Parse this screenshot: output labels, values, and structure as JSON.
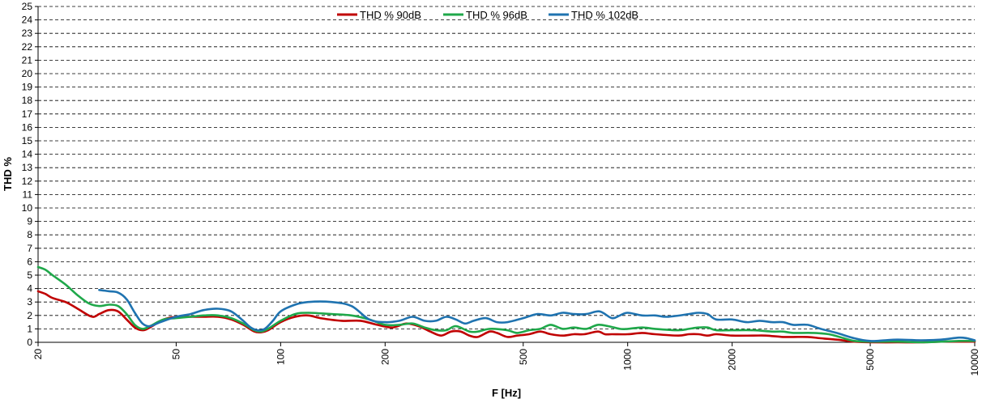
{
  "chart_data": {
    "type": "line",
    "xscale": "log",
    "xlim": [
      20,
      10000
    ],
    "ylim": [
      0,
      25
    ],
    "xlabel": "F [Hz]",
    "ylabel": "THD %",
    "x_ticks": [
      "20",
      "50",
      "100",
      "200",
      "500",
      "1000",
      "2000",
      "5000",
      "10000"
    ],
    "y_ticks": [
      "0",
      "1",
      "2",
      "3",
      "4",
      "5",
      "6",
      "7",
      "8",
      "9",
      "10",
      "11",
      "12",
      "13",
      "14",
      "15",
      "16",
      "17",
      "18",
      "19",
      "20",
      "21",
      "22",
      "23",
      "24",
      "25"
    ],
    "grid": "horizontal dashed",
    "legend": "top-center",
    "series": [
      {
        "name": "THD % 90dB",
        "color": "#c00000",
        "points": [
          [
            20,
            3.8
          ],
          [
            21,
            3.6
          ],
          [
            22,
            3.3
          ],
          [
            24,
            3.0
          ],
          [
            26,
            2.5
          ],
          [
            28,
            2.0
          ],
          [
            29,
            1.9
          ],
          [
            30,
            2.1
          ],
          [
            32,
            2.4
          ],
          [
            34,
            2.3
          ],
          [
            36,
            1.7
          ],
          [
            38,
            1.1
          ],
          [
            40,
            0.9
          ],
          [
            42,
            1.1
          ],
          [
            46,
            1.7
          ],
          [
            50,
            1.9
          ],
          [
            55,
            1.9
          ],
          [
            60,
            1.9
          ],
          [
            66,
            1.9
          ],
          [
            72,
            1.7
          ],
          [
            78,
            1.3
          ],
          [
            84,
            0.8
          ],
          [
            88,
            0.75
          ],
          [
            92,
            0.9
          ],
          [
            100,
            1.5
          ],
          [
            110,
            1.9
          ],
          [
            120,
            2.0
          ],
          [
            130,
            1.8
          ],
          [
            150,
            1.6
          ],
          [
            170,
            1.6
          ],
          [
            190,
            1.3
          ],
          [
            210,
            1.1
          ],
          [
            230,
            1.4
          ],
          [
            250,
            1.2
          ],
          [
            270,
            0.8
          ],
          [
            290,
            0.5
          ],
          [
            310,
            0.8
          ],
          [
            330,
            0.8
          ],
          [
            350,
            0.5
          ],
          [
            370,
            0.4
          ],
          [
            400,
            0.8
          ],
          [
            420,
            0.7
          ],
          [
            450,
            0.4
          ],
          [
            480,
            0.5
          ],
          [
            520,
            0.6
          ],
          [
            560,
            0.8
          ],
          [
            600,
            0.6
          ],
          [
            650,
            0.5
          ],
          [
            700,
            0.6
          ],
          [
            750,
            0.6
          ],
          [
            820,
            0.8
          ],
          [
            860,
            0.6
          ],
          [
            900,
            0.6
          ],
          [
            1000,
            0.6
          ],
          [
            1100,
            0.7
          ],
          [
            1200,
            0.6
          ],
          [
            1400,
            0.5
          ],
          [
            1500,
            0.6
          ],
          [
            1600,
            0.6
          ],
          [
            1700,
            0.5
          ],
          [
            1800,
            0.6
          ],
          [
            2000,
            0.5
          ],
          [
            2300,
            0.5
          ],
          [
            2500,
            0.5
          ],
          [
            2800,
            0.4
          ],
          [
            3000,
            0.4
          ],
          [
            3300,
            0.4
          ],
          [
            3600,
            0.3
          ],
          [
            4000,
            0.2
          ],
          [
            4500,
            0.05
          ],
          [
            5000,
            0.0
          ],
          [
            6000,
            0.0
          ],
          [
            7000,
            0.0
          ],
          [
            8000,
            0.05
          ],
          [
            9000,
            0.05
          ],
          [
            10000,
            0.05
          ]
        ]
      },
      {
        "name": "THD % 96dB",
        "color": "#1fa84a",
        "points": [
          [
            20,
            5.6
          ],
          [
            21,
            5.4
          ],
          [
            22,
            5.0
          ],
          [
            24,
            4.3
          ],
          [
            26,
            3.5
          ],
          [
            28,
            2.9
          ],
          [
            30,
            2.7
          ],
          [
            32,
            2.8
          ],
          [
            34,
            2.7
          ],
          [
            36,
            2.1
          ],
          [
            38,
            1.3
          ],
          [
            40,
            1.0
          ],
          [
            42,
            1.2
          ],
          [
            46,
            1.7
          ],
          [
            50,
            1.8
          ],
          [
            55,
            1.9
          ],
          [
            60,
            2.0
          ],
          [
            66,
            2.0
          ],
          [
            72,
            1.8
          ],
          [
            78,
            1.4
          ],
          [
            84,
            0.9
          ],
          [
            88,
            0.8
          ],
          [
            92,
            1.0
          ],
          [
            100,
            1.6
          ],
          [
            110,
            2.1
          ],
          [
            120,
            2.2
          ],
          [
            140,
            2.1
          ],
          [
            160,
            2.0
          ],
          [
            180,
            1.7
          ],
          [
            200,
            1.3
          ],
          [
            220,
            1.3
          ],
          [
            240,
            1.4
          ],
          [
            260,
            1.1
          ],
          [
            280,
            0.9
          ],
          [
            300,
            0.9
          ],
          [
            320,
            1.2
          ],
          [
            350,
            0.8
          ],
          [
            370,
            0.8
          ],
          [
            400,
            1.0
          ],
          [
            450,
            0.9
          ],
          [
            480,
            0.7
          ],
          [
            520,
            0.9
          ],
          [
            560,
            1.0
          ],
          [
            600,
            1.3
          ],
          [
            650,
            1.0
          ],
          [
            700,
            1.1
          ],
          [
            760,
            1.0
          ],
          [
            820,
            1.3
          ],
          [
            880,
            1.2
          ],
          [
            950,
            1.0
          ],
          [
            1000,
            1.0
          ],
          [
            1100,
            1.1
          ],
          [
            1200,
            1.0
          ],
          [
            1400,
            0.9
          ],
          [
            1500,
            1.0
          ],
          [
            1600,
            1.1
          ],
          [
            1700,
            1.1
          ],
          [
            1800,
            0.9
          ],
          [
            2000,
            0.9
          ],
          [
            2300,
            0.9
          ],
          [
            2600,
            0.8
          ],
          [
            2800,
            0.8
          ],
          [
            3000,
            0.7
          ],
          [
            3400,
            0.7
          ],
          [
            3800,
            0.6
          ],
          [
            4200,
            0.3
          ],
          [
            4500,
            0.1
          ],
          [
            5000,
            0.05
          ],
          [
            6000,
            0.05
          ],
          [
            7000,
            0.0
          ],
          [
            8000,
            0.05
          ],
          [
            9000,
            0.1
          ],
          [
            10000,
            0.1
          ]
        ]
      },
      {
        "name": "THD % 102dB",
        "color": "#1f73b0",
        "points": [
          [
            30,
            3.9
          ],
          [
            32,
            3.8
          ],
          [
            34,
            3.7
          ],
          [
            36,
            3.2
          ],
          [
            38,
            2.2
          ],
          [
            40,
            1.4
          ],
          [
            42,
            1.2
          ],
          [
            45,
            1.5
          ],
          [
            50,
            1.9
          ],
          [
            55,
            2.1
          ],
          [
            60,
            2.4
          ],
          [
            66,
            2.5
          ],
          [
            72,
            2.3
          ],
          [
            78,
            1.6
          ],
          [
            82,
            1.1
          ],
          [
            86,
            0.9
          ],
          [
            90,
            1.0
          ],
          [
            95,
            1.6
          ],
          [
            100,
            2.3
          ],
          [
            110,
            2.8
          ],
          [
            120,
            3.0
          ],
          [
            140,
            3.0
          ],
          [
            160,
            2.7
          ],
          [
            180,
            1.7
          ],
          [
            200,
            1.5
          ],
          [
            220,
            1.6
          ],
          [
            240,
            1.9
          ],
          [
            260,
            1.6
          ],
          [
            280,
            1.6
          ],
          [
            300,
            1.9
          ],
          [
            320,
            1.7
          ],
          [
            340,
            1.4
          ],
          [
            360,
            1.6
          ],
          [
            390,
            1.8
          ],
          [
            420,
            1.5
          ],
          [
            450,
            1.5
          ],
          [
            500,
            1.8
          ],
          [
            550,
            2.1
          ],
          [
            600,
            2.0
          ],
          [
            650,
            2.2
          ],
          [
            700,
            2.1
          ],
          [
            760,
            2.1
          ],
          [
            830,
            2.3
          ],
          [
            900,
            1.8
          ],
          [
            950,
            2.0
          ],
          [
            1000,
            2.2
          ],
          [
            1100,
            2.0
          ],
          [
            1200,
            2.0
          ],
          [
            1300,
            1.9
          ],
          [
            1500,
            2.1
          ],
          [
            1600,
            2.2
          ],
          [
            1700,
            2.1
          ],
          [
            1800,
            1.7
          ],
          [
            2000,
            1.7
          ],
          [
            2200,
            1.5
          ],
          [
            2400,
            1.6
          ],
          [
            2600,
            1.5
          ],
          [
            2800,
            1.5
          ],
          [
            3000,
            1.3
          ],
          [
            3300,
            1.3
          ],
          [
            3600,
            1.0
          ],
          [
            4000,
            0.7
          ],
          [
            4500,
            0.3
          ],
          [
            5000,
            0.1
          ],
          [
            5500,
            0.15
          ],
          [
            6000,
            0.2
          ],
          [
            7000,
            0.15
          ],
          [
            8000,
            0.2
          ],
          [
            9000,
            0.35
          ],
          [
            9500,
            0.3
          ],
          [
            10000,
            0.15
          ]
        ]
      }
    ]
  }
}
